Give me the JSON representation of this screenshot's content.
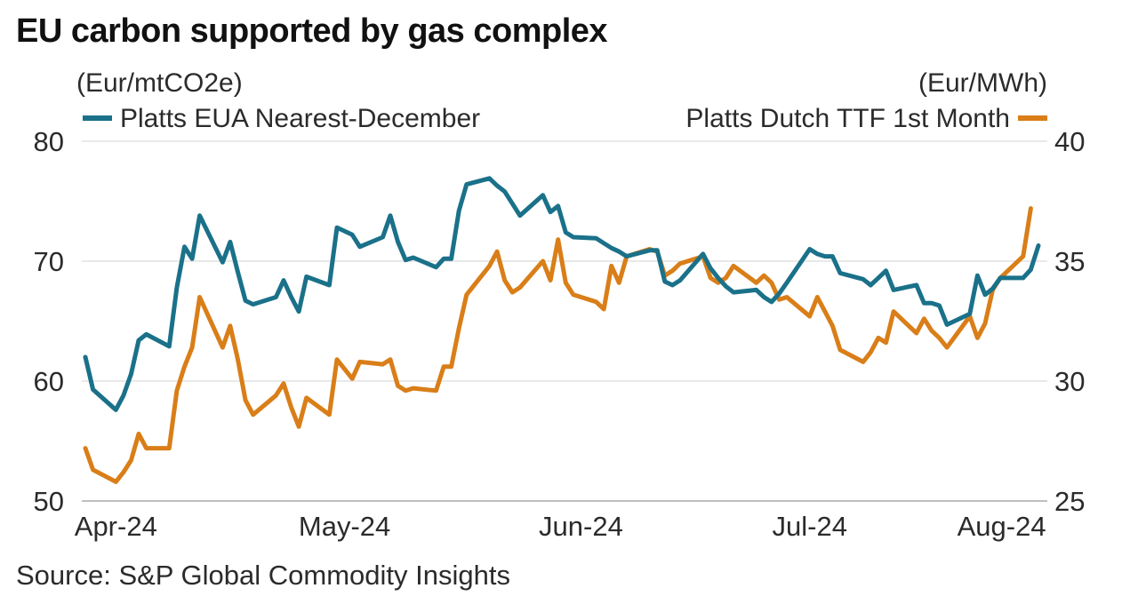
{
  "title": "EU carbon supported by gas complex",
  "source": "Source: S&P Global Commodity Insights",
  "chart_data": {
    "type": "line",
    "left_unit": "(Eur/mtCO2e)",
    "right_unit": "(Eur/MWh)",
    "left_ylim": [
      50,
      80
    ],
    "left_ticks": [
      50,
      60,
      70,
      80
    ],
    "right_ylim": [
      25,
      40
    ],
    "right_ticks": [
      25,
      30,
      35,
      40
    ],
    "grid": true,
    "legend_position": "top",
    "x_tick_labels": [
      {
        "label": "Apr-24",
        "date": "2024-04-01"
      },
      {
        "label": "May-24",
        "date": "2024-05-01"
      },
      {
        "label": "Jun-24",
        "date": "2024-06-01"
      },
      {
        "label": "Jul-24",
        "date": "2024-07-01"
      },
      {
        "label": "Aug-24",
        "date": "2024-08-01"
      }
    ],
    "series": [
      {
        "name": "Platts EUA Nearest-December",
        "axis": "left",
        "color": "#1a7189",
        "points": [
          [
            "2024-03-28",
            62.0
          ],
          [
            "2024-03-29",
            59.3
          ],
          [
            "2024-04-01",
            57.6
          ],
          [
            "2024-04-02",
            58.8
          ],
          [
            "2024-04-03",
            60.6
          ],
          [
            "2024-04-04",
            63.4
          ],
          [
            "2024-04-05",
            63.9
          ],
          [
            "2024-04-08",
            62.9
          ],
          [
            "2024-04-09",
            67.8
          ],
          [
            "2024-04-10",
            71.2
          ],
          [
            "2024-04-11",
            70.2
          ],
          [
            "2024-04-12",
            73.8
          ],
          [
            "2024-04-15",
            69.9
          ],
          [
            "2024-04-16",
            71.6
          ],
          [
            "2024-04-17",
            69.1
          ],
          [
            "2024-04-18",
            66.7
          ],
          [
            "2024-04-19",
            66.4
          ],
          [
            "2024-04-22",
            67.0
          ],
          [
            "2024-04-23",
            68.4
          ],
          [
            "2024-04-24",
            67.0
          ],
          [
            "2024-04-25",
            65.8
          ],
          [
            "2024-04-26",
            68.7
          ],
          [
            "2024-04-29",
            68.0
          ],
          [
            "2024-04-30",
            72.8
          ],
          [
            "2024-05-02",
            72.2
          ],
          [
            "2024-05-03",
            71.2
          ],
          [
            "2024-05-06",
            72.0
          ],
          [
            "2024-05-07",
            73.8
          ],
          [
            "2024-05-08",
            71.6
          ],
          [
            "2024-05-09",
            70.1
          ],
          [
            "2024-05-10",
            70.3
          ],
          [
            "2024-05-13",
            69.5
          ],
          [
            "2024-05-14",
            70.2
          ],
          [
            "2024-05-15",
            70.2
          ],
          [
            "2024-05-16",
            74.2
          ],
          [
            "2024-05-17",
            76.4
          ],
          [
            "2024-05-20",
            76.9
          ],
          [
            "2024-05-21",
            76.3
          ],
          [
            "2024-05-22",
            75.8
          ],
          [
            "2024-05-23",
            74.8
          ],
          [
            "2024-05-24",
            73.8
          ],
          [
            "2024-05-27",
            75.5
          ],
          [
            "2024-05-28",
            74.1
          ],
          [
            "2024-05-29",
            74.6
          ],
          [
            "2024-05-30",
            72.4
          ],
          [
            "2024-05-31",
            72.0
          ],
          [
            "2024-06-03",
            71.9
          ],
          [
            "2024-06-04",
            71.5
          ],
          [
            "2024-06-05",
            71.1
          ],
          [
            "2024-06-06",
            70.8
          ],
          [
            "2024-06-07",
            70.4
          ],
          [
            "2024-06-10",
            70.9
          ],
          [
            "2024-06-11",
            70.9
          ],
          [
            "2024-06-12",
            68.3
          ],
          [
            "2024-06-13",
            68.0
          ],
          [
            "2024-06-14",
            68.4
          ],
          [
            "2024-06-17",
            70.6
          ],
          [
            "2024-06-18",
            69.4
          ],
          [
            "2024-06-19",
            68.6
          ],
          [
            "2024-06-20",
            67.9
          ],
          [
            "2024-06-21",
            67.4
          ],
          [
            "2024-06-24",
            67.6
          ],
          [
            "2024-06-25",
            67.0
          ],
          [
            "2024-06-26",
            66.6
          ],
          [
            "2024-06-27",
            67.3
          ],
          [
            "2024-06-28",
            68.2
          ],
          [
            "2024-07-01",
            71.0
          ],
          [
            "2024-07-02",
            70.6
          ],
          [
            "2024-07-03",
            70.4
          ],
          [
            "2024-07-04",
            70.4
          ],
          [
            "2024-07-05",
            69.0
          ],
          [
            "2024-07-08",
            68.5
          ],
          [
            "2024-07-09",
            68.0
          ],
          [
            "2024-07-10",
            68.6
          ],
          [
            "2024-07-11",
            69.2
          ],
          [
            "2024-07-12",
            67.6
          ],
          [
            "2024-07-15",
            68.0
          ],
          [
            "2024-07-16",
            66.5
          ],
          [
            "2024-07-17",
            66.5
          ],
          [
            "2024-07-18",
            66.3
          ],
          [
            "2024-07-19",
            64.7
          ],
          [
            "2024-07-22",
            65.6
          ],
          [
            "2024-07-23",
            68.8
          ],
          [
            "2024-07-24",
            67.2
          ],
          [
            "2024-07-25",
            67.7
          ],
          [
            "2024-07-26",
            68.6
          ],
          [
            "2024-07-29",
            68.6
          ],
          [
            "2024-07-30",
            69.3
          ],
          [
            "2024-07-31",
            71.3
          ]
        ]
      },
      {
        "name": "Platts Dutch TTF 1st Month",
        "axis": "right",
        "color": "#d97e18",
        "points": [
          [
            "2024-03-28",
            27.2
          ],
          [
            "2024-03-29",
            26.3
          ],
          [
            "2024-04-01",
            25.8
          ],
          [
            "2024-04-02",
            26.2
          ],
          [
            "2024-04-03",
            26.7
          ],
          [
            "2024-04-04",
            27.8
          ],
          [
            "2024-04-05",
            27.2
          ],
          [
            "2024-04-08",
            27.2
          ],
          [
            "2024-04-09",
            29.6
          ],
          [
            "2024-04-10",
            30.6
          ],
          [
            "2024-04-11",
            31.4
          ],
          [
            "2024-04-12",
            33.5
          ],
          [
            "2024-04-15",
            31.4
          ],
          [
            "2024-04-16",
            32.3
          ],
          [
            "2024-04-17",
            30.9
          ],
          [
            "2024-04-18",
            29.2
          ],
          [
            "2024-04-19",
            28.6
          ],
          [
            "2024-04-22",
            29.4
          ],
          [
            "2024-04-23",
            29.9
          ],
          [
            "2024-04-24",
            28.9
          ],
          [
            "2024-04-25",
            28.1
          ],
          [
            "2024-04-26",
            29.3
          ],
          [
            "2024-04-29",
            28.6
          ],
          [
            "2024-04-30",
            30.9
          ],
          [
            "2024-05-02",
            30.1
          ],
          [
            "2024-05-03",
            30.8
          ],
          [
            "2024-05-06",
            30.7
          ],
          [
            "2024-05-07",
            30.9
          ],
          [
            "2024-05-08",
            29.8
          ],
          [
            "2024-05-09",
            29.6
          ],
          [
            "2024-05-10",
            29.7
          ],
          [
            "2024-05-13",
            29.6
          ],
          [
            "2024-05-14",
            30.6
          ],
          [
            "2024-05-15",
            30.6
          ],
          [
            "2024-05-16",
            32.2
          ],
          [
            "2024-05-17",
            33.6
          ],
          [
            "2024-05-20",
            34.8
          ],
          [
            "2024-05-21",
            35.4
          ],
          [
            "2024-05-22",
            34.2
          ],
          [
            "2024-05-23",
            33.7
          ],
          [
            "2024-05-24",
            33.9
          ],
          [
            "2024-05-27",
            35.0
          ],
          [
            "2024-05-28",
            34.2
          ],
          [
            "2024-05-29",
            35.9
          ],
          [
            "2024-05-30",
            34.1
          ],
          [
            "2024-05-31",
            33.6
          ],
          [
            "2024-06-03",
            33.3
          ],
          [
            "2024-06-04",
            33.0
          ],
          [
            "2024-06-05",
            34.8
          ],
          [
            "2024-06-06",
            34.1
          ],
          [
            "2024-06-07",
            35.2
          ],
          [
            "2024-06-10",
            35.5
          ],
          [
            "2024-06-11",
            35.4
          ],
          [
            "2024-06-12",
            34.4
          ],
          [
            "2024-06-13",
            34.6
          ],
          [
            "2024-06-14",
            34.9
          ],
          [
            "2024-06-17",
            35.2
          ],
          [
            "2024-06-18",
            34.3
          ],
          [
            "2024-06-19",
            34.1
          ],
          [
            "2024-06-20",
            34.3
          ],
          [
            "2024-06-21",
            34.8
          ],
          [
            "2024-06-24",
            34.1
          ],
          [
            "2024-06-25",
            34.4
          ],
          [
            "2024-06-26",
            34.1
          ],
          [
            "2024-06-27",
            33.4
          ],
          [
            "2024-06-28",
            33.5
          ],
          [
            "2024-07-01",
            32.7
          ],
          [
            "2024-07-02",
            33.5
          ],
          [
            "2024-07-03",
            32.9
          ],
          [
            "2024-07-04",
            32.3
          ],
          [
            "2024-07-05",
            31.3
          ],
          [
            "2024-07-08",
            30.8
          ],
          [
            "2024-07-09",
            31.2
          ],
          [
            "2024-07-10",
            31.8
          ],
          [
            "2024-07-11",
            31.6
          ],
          [
            "2024-07-12",
            32.9
          ],
          [
            "2024-07-15",
            32.0
          ],
          [
            "2024-07-16",
            32.6
          ],
          [
            "2024-07-17",
            32.1
          ],
          [
            "2024-07-18",
            31.8
          ],
          [
            "2024-07-19",
            31.4
          ],
          [
            "2024-07-22",
            32.7
          ],
          [
            "2024-07-23",
            31.8
          ],
          [
            "2024-07-24",
            32.4
          ],
          [
            "2024-07-25",
            33.8
          ],
          [
            "2024-07-26",
            34.3
          ],
          [
            "2024-07-29",
            35.2
          ],
          [
            "2024-07-30",
            37.2
          ]
        ]
      }
    ]
  }
}
